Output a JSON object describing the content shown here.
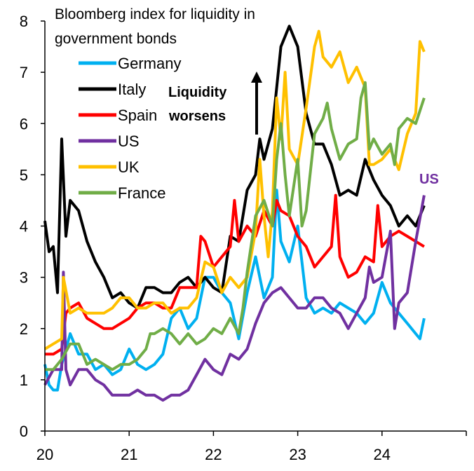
{
  "chart_data": {
    "type": "line",
    "title": "Bloomberg index for liquidity in government bonds",
    "title_lines": [
      "Bloomberg index for liquidity in",
      "government bonds"
    ],
    "xlabel": "",
    "ylabel": "",
    "xlim": [
      20,
      25
    ],
    "ylim": [
      0,
      8
    ],
    "x_ticks": [
      20,
      21,
      22,
      23,
      24
    ],
    "x_tick_labels": [
      "20",
      "21",
      "22",
      "23",
      "24"
    ],
    "y_ticks": [
      0,
      1,
      2,
      3,
      4,
      5,
      6,
      7,
      8
    ],
    "y_tick_labels": [
      "0",
      "1",
      "2",
      "3",
      "4",
      "5",
      "6",
      "7",
      "8"
    ],
    "grid": false,
    "legend_position": "top-left",
    "annotations": {
      "liquidity_line1": "Liquidity",
      "liquidity_line2": "worsens",
      "us_label": "US"
    },
    "series": [
      {
        "name": "Germany",
        "color": "#00B0F0",
        "x": [
          20.0,
          20.05,
          20.1,
          20.15,
          20.2,
          20.3,
          20.4,
          20.5,
          20.6,
          20.7,
          20.8,
          20.9,
          21.0,
          21.1,
          21.2,
          21.3,
          21.4,
          21.5,
          21.6,
          21.7,
          21.8,
          21.9,
          22.0,
          22.1,
          22.2,
          22.3,
          22.4,
          22.5,
          22.6,
          22.7,
          22.75,
          22.8,
          22.9,
          23.0,
          23.1,
          23.2,
          23.3,
          23.4,
          23.5,
          23.6,
          23.7,
          23.8,
          23.9,
          24.0,
          24.1,
          24.2,
          24.3,
          24.4,
          24.45,
          24.5
        ],
        "y": [
          1.3,
          0.9,
          0.8,
          0.8,
          1.3,
          1.9,
          1.5,
          1.5,
          1.2,
          1.3,
          1.1,
          1.2,
          1.6,
          1.3,
          1.2,
          1.3,
          1.5,
          2.2,
          2.4,
          2.0,
          2.2,
          3.0,
          3.0,
          2.7,
          2.5,
          1.8,
          2.7,
          3.4,
          2.6,
          3.0,
          4.7,
          3.7,
          3.3,
          4.0,
          2.6,
          2.3,
          2.4,
          2.3,
          2.5,
          2.4,
          2.3,
          2.1,
          2.3,
          2.9,
          2.5,
          2.3,
          2.1,
          1.9,
          1.8,
          2.2
        ]
      },
      {
        "name": "Italy",
        "color": "#000000",
        "x": [
          20.0,
          20.05,
          20.1,
          20.15,
          20.2,
          20.25,
          20.3,
          20.4,
          20.5,
          20.6,
          20.7,
          20.8,
          20.9,
          21.0,
          21.1,
          21.2,
          21.3,
          21.4,
          21.5,
          21.6,
          21.7,
          21.8,
          21.9,
          22.0,
          22.1,
          22.2,
          22.3,
          22.4,
          22.5,
          22.55,
          22.6,
          22.7,
          22.75,
          22.8,
          22.9,
          23.0,
          23.1,
          23.2,
          23.3,
          23.4,
          23.5,
          23.6,
          23.7,
          23.8,
          23.9,
          24.0,
          24.1,
          24.2,
          24.3,
          24.4,
          24.5
        ],
        "y": [
          4.1,
          3.5,
          3.6,
          2.7,
          5.7,
          3.8,
          4.5,
          4.3,
          3.7,
          3.3,
          3.0,
          2.6,
          2.7,
          2.5,
          2.4,
          2.8,
          2.8,
          2.7,
          2.7,
          2.9,
          3.0,
          2.8,
          3.0,
          2.8,
          2.7,
          3.8,
          3.7,
          4.7,
          5.0,
          5.7,
          5.3,
          5.9,
          6.7,
          7.5,
          7.9,
          7.5,
          6.2,
          5.6,
          5.6,
          5.2,
          4.6,
          4.7,
          4.6,
          5.3,
          4.9,
          4.6,
          4.4,
          4.0,
          4.2,
          4.0,
          4.4
        ]
      },
      {
        "name": "Spain",
        "color": "#FF0000",
        "x": [
          20.0,
          20.1,
          20.2,
          20.25,
          20.3,
          20.4,
          20.5,
          20.6,
          20.7,
          20.8,
          20.9,
          21.0,
          21.1,
          21.2,
          21.3,
          21.4,
          21.5,
          21.6,
          21.7,
          21.8,
          21.85,
          21.9,
          22.0,
          22.1,
          22.2,
          22.25,
          22.3,
          22.4,
          22.5,
          22.6,
          22.7,
          22.75,
          22.8,
          22.9,
          23.0,
          23.1,
          23.2,
          23.3,
          23.4,
          23.45,
          23.5,
          23.6,
          23.7,
          23.8,
          23.9,
          23.95,
          24.0,
          24.1,
          24.2,
          24.3,
          24.4,
          24.5
        ],
        "y": [
          1.5,
          1.5,
          1.6,
          2.3,
          2.4,
          2.5,
          2.2,
          2.1,
          2.0,
          2.0,
          2.1,
          2.2,
          2.4,
          2.5,
          2.5,
          2.4,
          2.4,
          2.8,
          2.8,
          2.8,
          3.8,
          3.7,
          3.2,
          3.4,
          3.6,
          4.5,
          3.7,
          4.0,
          3.8,
          4.3,
          4.0,
          4.5,
          4.3,
          4.2,
          3.8,
          3.6,
          3.2,
          3.4,
          3.6,
          4.6,
          3.4,
          3.0,
          3.1,
          3.4,
          3.3,
          4.4,
          3.6,
          3.8,
          3.9,
          3.8,
          3.7,
          3.6
        ]
      },
      {
        "name": "US",
        "color": "#7030A0",
        "x": [
          20.0,
          20.1,
          20.2,
          20.22,
          20.25,
          20.3,
          20.4,
          20.5,
          20.6,
          20.7,
          20.8,
          20.9,
          21.0,
          21.1,
          21.2,
          21.3,
          21.4,
          21.5,
          21.6,
          21.7,
          21.8,
          21.9,
          22.0,
          22.1,
          22.2,
          22.3,
          22.4,
          22.5,
          22.6,
          22.7,
          22.8,
          22.9,
          23.0,
          23.1,
          23.2,
          23.3,
          23.4,
          23.5,
          23.6,
          23.7,
          23.8,
          23.85,
          23.9,
          24.0,
          24.1,
          24.15,
          24.2,
          24.3,
          24.4,
          24.5
        ],
        "y": [
          0.9,
          1.2,
          1.2,
          3.1,
          1.2,
          0.9,
          1.2,
          1.2,
          1.0,
          0.9,
          0.7,
          0.7,
          0.7,
          0.8,
          0.7,
          0.7,
          0.6,
          0.7,
          0.7,
          0.8,
          1.1,
          1.4,
          1.2,
          1.1,
          1.5,
          1.4,
          1.6,
          2.1,
          2.5,
          2.7,
          2.8,
          2.6,
          2.4,
          2.4,
          2.6,
          2.6,
          2.4,
          2.3,
          2.0,
          2.3,
          2.6,
          3.2,
          2.9,
          3.0,
          3.9,
          2.0,
          2.5,
          2.7,
          3.7,
          4.6
        ]
      },
      {
        "name": "UK",
        "color": "#FFC000",
        "x": [
          20.0,
          20.1,
          20.2,
          20.22,
          20.3,
          20.4,
          20.5,
          20.6,
          20.7,
          20.8,
          20.9,
          21.0,
          21.1,
          21.2,
          21.3,
          21.4,
          21.5,
          21.6,
          21.7,
          21.8,
          21.9,
          22.0,
          22.1,
          22.2,
          22.3,
          22.4,
          22.5,
          22.55,
          22.6,
          22.65,
          22.7,
          22.75,
          22.8,
          22.85,
          22.9,
          23.0,
          23.1,
          23.2,
          23.25,
          23.3,
          23.4,
          23.5,
          23.6,
          23.7,
          23.8,
          23.85,
          23.9,
          24.0,
          24.1,
          24.2,
          24.3,
          24.4,
          24.45,
          24.5
        ],
        "y": [
          1.6,
          1.7,
          1.8,
          3.0,
          2.3,
          2.4,
          2.3,
          2.3,
          2.3,
          2.4,
          2.6,
          2.6,
          2.4,
          2.4,
          2.5,
          2.5,
          2.3,
          2.4,
          2.4,
          2.6,
          3.3,
          3.2,
          2.7,
          3.0,
          2.8,
          3.0,
          3.9,
          5.3,
          4.2,
          3.4,
          4.3,
          6.5,
          5.7,
          7.0,
          5.5,
          5.2,
          6.3,
          7.5,
          7.8,
          7.3,
          7.1,
          7.4,
          6.8,
          7.1,
          6.7,
          5.2,
          5.2,
          5.3,
          5.5,
          5.1,
          5.8,
          6.2,
          7.6,
          7.4
        ]
      },
      {
        "name": "France",
        "color": "#70AD47",
        "x": [
          20.0,
          20.1,
          20.2,
          20.3,
          20.4,
          20.5,
          20.6,
          20.7,
          20.8,
          20.9,
          21.0,
          21.1,
          21.2,
          21.25,
          21.3,
          21.4,
          21.5,
          21.6,
          21.7,
          21.8,
          21.9,
          22.0,
          22.1,
          22.2,
          22.3,
          22.35,
          22.4,
          22.5,
          22.6,
          22.7,
          22.75,
          22.8,
          22.85,
          22.9,
          23.0,
          23.05,
          23.1,
          23.2,
          23.3,
          23.35,
          23.4,
          23.5,
          23.6,
          23.7,
          23.75,
          23.8,
          23.85,
          23.9,
          24.0,
          24.1,
          24.15,
          24.2,
          24.3,
          24.4,
          24.5
        ],
        "y": [
          1.2,
          1.2,
          1.4,
          1.7,
          1.7,
          1.3,
          1.4,
          1.3,
          1.2,
          1.3,
          1.3,
          1.4,
          1.6,
          1.9,
          1.9,
          2.0,
          1.9,
          1.7,
          1.9,
          1.7,
          1.8,
          2.0,
          1.9,
          2.2,
          1.9,
          2.4,
          3.1,
          4.2,
          4.5,
          4.0,
          5.3,
          6.0,
          5.0,
          4.2,
          5.3,
          4.0,
          4.3,
          5.8,
          6.1,
          6.4,
          5.9,
          5.3,
          5.6,
          5.7,
          6.5,
          6.8,
          5.5,
          5.7,
          5.4,
          5.6,
          5.2,
          5.9,
          6.1,
          6.0,
          6.5
        ]
      }
    ]
  }
}
